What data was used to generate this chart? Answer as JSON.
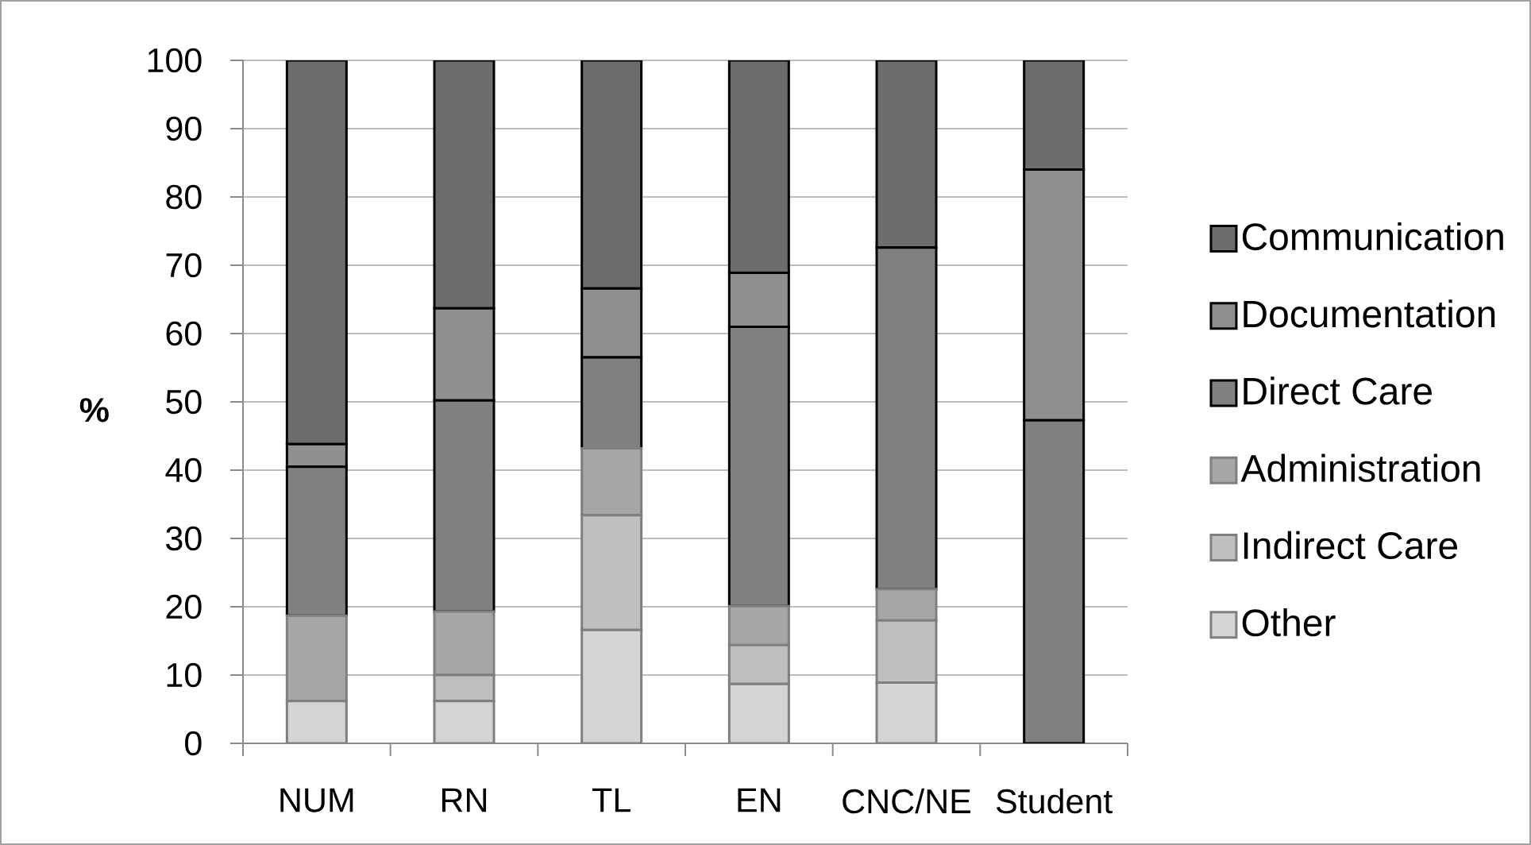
{
  "chart_data": {
    "type": "bar",
    "stacked": true,
    "ylabel": "%",
    "categories": [
      "NUM",
      "RN",
      "TL",
      "EN",
      "CNC/NE",
      "Student"
    ],
    "series": [
      {
        "name": "Other",
        "color": "#d4d4d4",
        "values": [
          6.2,
          6.2,
          16.6,
          8.7,
          8.9,
          0
        ]
      },
      {
        "name": "Indirect Care",
        "color": "#bfbfbf",
        "values": [
          0,
          3.8,
          16.8,
          5.7,
          9.1,
          0
        ]
      },
      {
        "name": "Administration",
        "color": "#a6a6a6",
        "values": [
          12.5,
          9.3,
          9.8,
          5.7,
          4.6,
          0
        ]
      },
      {
        "name": "Direct Care",
        "color": "#808080",
        "values": [
          21.8,
          30.9,
          13.3,
          40.9,
          50.0,
          47.3
        ]
      },
      {
        "name": "Documentation",
        "color": "#8f8f8f",
        "values": [
          3.3,
          13.5,
          10.1,
          7.9,
          0,
          36.7
        ]
      },
      {
        "name": "Communication",
        "color": "#6d6d6d",
        "values": [
          56.2,
          36.3,
          33.4,
          31.1,
          27.4,
          16.0
        ]
      }
    ],
    "ylim": [
      0,
      100
    ],
    "yticks": [
      0,
      10,
      20,
      30,
      40,
      50,
      60,
      70,
      80,
      90,
      100
    ],
    "grid": "y",
    "legend": "right"
  }
}
